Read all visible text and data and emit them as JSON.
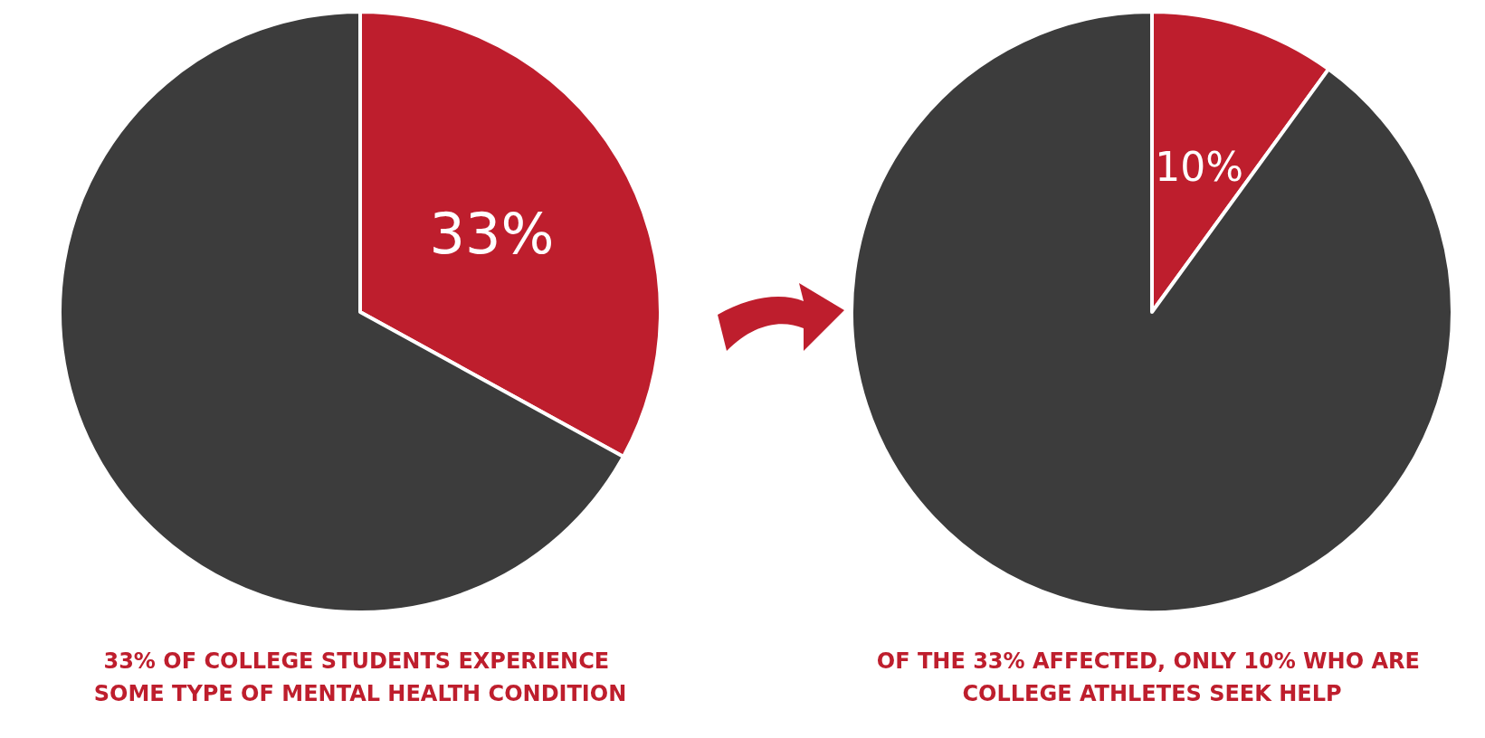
{
  "chart_data": [
    {
      "type": "pie",
      "categories": [
        null,
        null
      ],
      "values": [
        33,
        67
      ],
      "colors": [
        "#be1e2d",
        "#3c3c3c"
      ],
      "value_labels": [
        "33%",
        null
      ],
      "annotations": [
        "33% OF COLLEGE STUDENTS EXPERIENCE SOME TYPE OF MENTAL HEALTH CONDITION"
      ]
    },
    {
      "type": "pie",
      "categories": [
        null,
        null
      ],
      "values": [
        10,
        90
      ],
      "colors": [
        "#be1e2d",
        "#3c3c3c"
      ],
      "value_labels": [
        "10%",
        null
      ],
      "annotations": [
        "OF THE 33% AFFECTED, ONLY 10% WHO ARE COLLEGE ATHLETES SEEK HELP"
      ]
    }
  ]
}
